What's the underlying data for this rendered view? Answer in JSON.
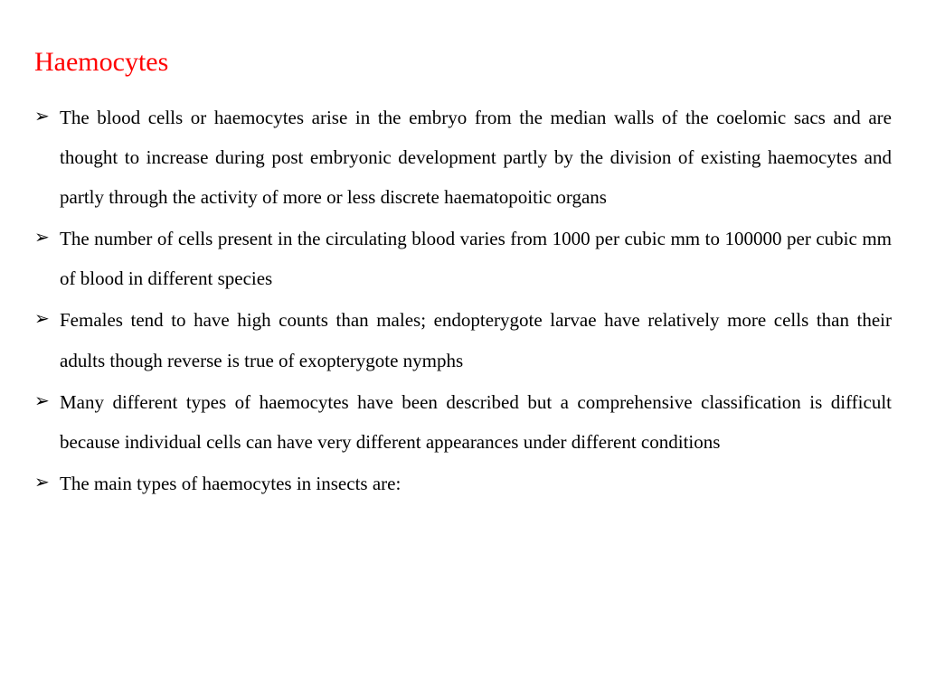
{
  "title": "Haemocytes",
  "title_color": "#ff0000",
  "text_color": "#000000",
  "background_color": "#ffffff",
  "font_family": "Times New Roman",
  "title_fontsize": 30,
  "body_fontsize": 21,
  "line_height": 2.1,
  "bullet_glyph": "➢",
  "bullets": [
    "The blood cells or haemocytes arise in the embryo from the median walls of the coelomic sacs and are thought to increase during post embryonic development partly by the division of existing haemocytes and partly through the activity of more or less discrete haematopoitic organs",
    "The number of cells present in the circulating blood varies from 1000 per cubic mm to 100000 per cubic mm of blood in different species",
    "Females tend to have high counts than males; endopterygote larvae have relatively more cells than their adults though reverse is true of exopterygote nymphs",
    "Many different types of haemocytes have been described but a comprehensive classification is difficult because individual cells can have very different appearances under different conditions",
    "The main types of haemocytes in insects are:"
  ]
}
